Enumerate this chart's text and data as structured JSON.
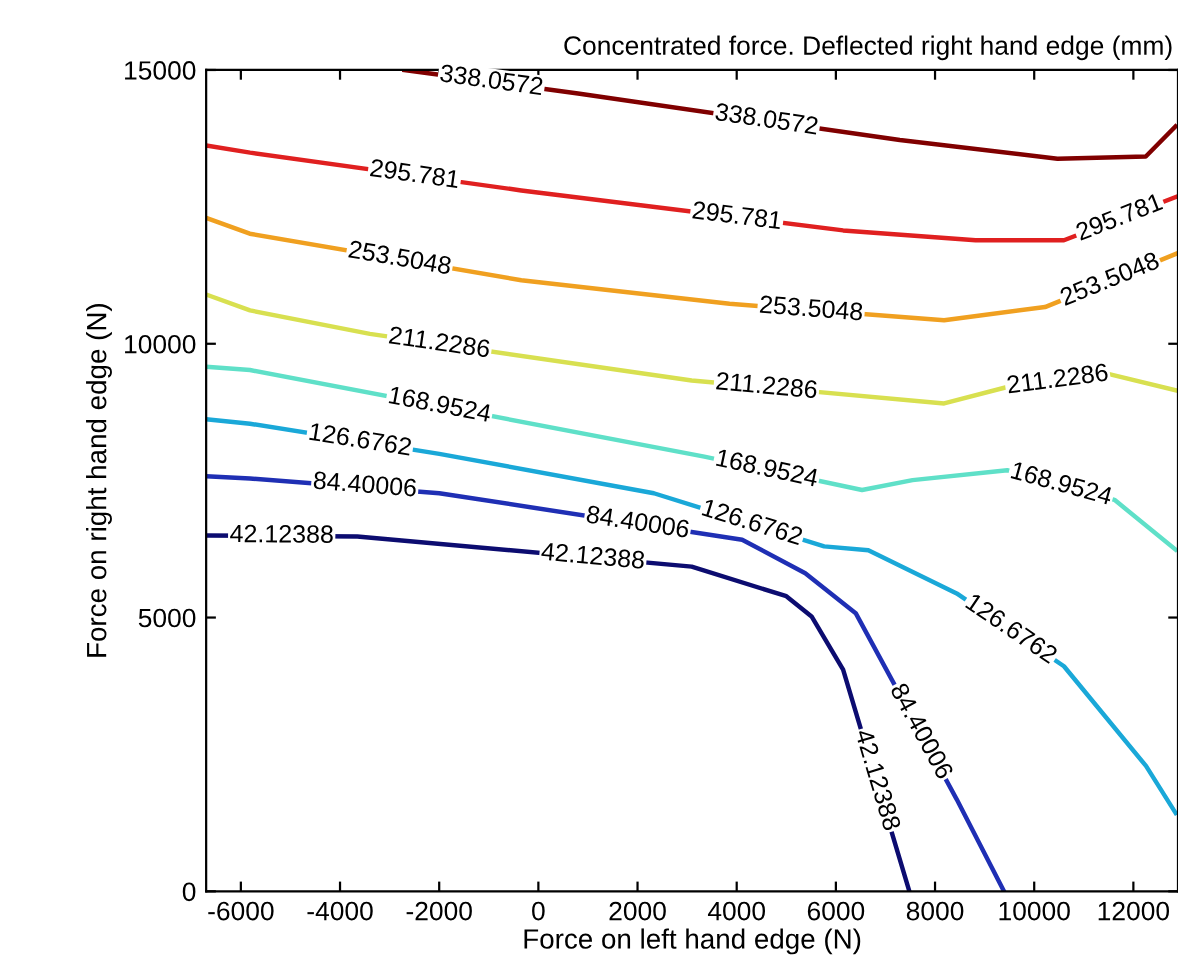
{
  "chart_data": {
    "type": "line",
    "xlabel": "Force on left hand edge (N)",
    "ylabel": "Force on right hand edge (N)",
    "grid": false,
    "marker": "none",
    "line_style": "solid",
    "xlim": [
      -6700,
      12900
    ],
    "ylim": [
      0,
      15000
    ],
    "xticks": [
      -6000,
      -4000,
      -2000,
      0,
      2000,
      4000,
      6000,
      8000,
      10000,
      12000
    ],
    "yticks": [
      0,
      5000,
      10000,
      15000
    ],
    "series": [
      {
        "color": "#0c0c70",
        "x": [
          -6700,
          -3652,
          3092,
          5001,
          5510,
          6146,
          7482
        ],
        "values": [
          6500,
          6480,
          5930,
          5390,
          5020,
          4050,
          0
        ]
      },
      {
        "color": "#1f2fb4",
        "x": [
          -6700,
          -5815,
          -1998,
          4110,
          5383,
          6400,
          8437,
          9391
        ],
        "values": [
          7580,
          7540,
          7270,
          6420,
          5810,
          5080,
          1680,
          0
        ]
      },
      {
        "color": "#1aa8d8",
        "x": [
          -6700,
          -5815,
          -1998,
          2329,
          5764,
          6655,
          8437,
          10600,
          12254,
          12852
        ],
        "values": [
          8620,
          8540,
          7990,
          7270,
          6300,
          6230,
          5440,
          4110,
          2290,
          1430
        ]
      },
      {
        "color": "#5fe0c8",
        "x": [
          -6700,
          -5815,
          3347,
          6528,
          7546,
          9456,
          11619,
          12852
        ],
        "values": [
          9580,
          9520,
          7940,
          7330,
          7510,
          7690,
          7150,
          6240
        ]
      },
      {
        "color": "#d8e050",
        "x": [
          -6700,
          -5815,
          -3398,
          3092,
          8183,
          9456,
          11491,
          12852
        ],
        "values": [
          10900,
          10610,
          10180,
          9330,
          8910,
          9210,
          9450,
          9150
        ]
      },
      {
        "color": "#f0a020",
        "x": [
          -6700,
          -5820,
          -344,
          3856,
          8183,
          10218,
          12852
        ],
        "values": [
          12300,
          12010,
          11160,
          10730,
          10430,
          10670,
          11640
        ]
      },
      {
        "color": "#e02020",
        "x": [
          -6700,
          -5815,
          -344,
          6146,
          8818,
          10600,
          12852
        ],
        "values": [
          13620,
          13490,
          12800,
          12070,
          11890,
          11890,
          12680
        ]
      },
      {
        "color": "#800000",
        "x": [
          -2700,
          800,
          7290,
          10470,
          12250,
          12850
        ],
        "values": [
          15000,
          14570,
          13720,
          13380,
          13420,
          13970
        ]
      }
    ],
    "annotations": [
      "Concentrated force. Deflected right hand edge (mm)",
      {
        "text": "42.12388",
        "x": -5176,
        "y": 6490
      },
      {
        "text": "42.12388",
        "x": 1100,
        "y": 6092
      },
      {
        "text": "42.12388",
        "x": 6814,
        "y": 2025
      },
      {
        "text": "84.40006",
        "x": -3500,
        "y": 7400
      },
      {
        "text": "84.40006",
        "x": 2000,
        "y": 6714
      },
      {
        "text": "84.40006",
        "x": 7700,
        "y": 2910
      },
      {
        "text": "126.6762",
        "x": -3600,
        "y": 8221
      },
      {
        "text": "126.6762",
        "x": 4300,
        "y": 6713
      },
      {
        "text": "126.6762",
        "x": 9518,
        "y": 4775
      },
      {
        "text": "168.9524",
        "x": -1998,
        "y": 8862
      },
      {
        "text": "168.9524",
        "x": 4600,
        "y": 7700
      },
      {
        "text": "168.9524",
        "x": 10537,
        "y": 7420
      },
      {
        "text": "211.2286",
        "x": -2000,
        "y": 9997
      },
      {
        "text": "211.2286",
        "x": 4600,
        "y": 9206
      },
      {
        "text": "211.2286",
        "x": 10474,
        "y": 9330
      },
      {
        "text": "253.5048",
        "x": -2800,
        "y": 11541
      },
      {
        "text": "253.5048",
        "x": 5500,
        "y": 10616
      },
      {
        "text": "253.5048",
        "x": 11535,
        "y": 11155
      },
      {
        "text": "295.781",
        "x": -2500,
        "y": 13072
      },
      {
        "text": "295.781",
        "x": 4000,
        "y": 12311
      },
      {
        "text": "295.781",
        "x": 11726,
        "y": 12285
      },
      {
        "text": "338.0572",
        "x": -950,
        "y": 14785
      },
      {
        "text": "338.0572",
        "x": 4600,
        "y": 14072
      }
    ]
  }
}
